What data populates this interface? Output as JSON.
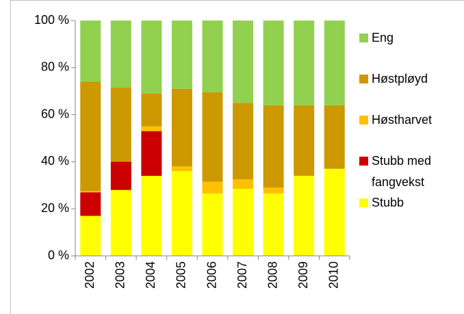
{
  "chart_data": {
    "type": "stacked_bar_percent",
    "categories": [
      "2002",
      "2003",
      "2004",
      "2005",
      "2006",
      "2007",
      "2008",
      "2009",
      "2010"
    ],
    "series": [
      {
        "name": "Stubb",
        "color": "#ffff00",
        "values": [
          17,
          28,
          34,
          36,
          26.5,
          28.5,
          26.5,
          34,
          37
        ]
      },
      {
        "name": "Stubb med fangvekst",
        "color": "#cc0000",
        "values": [
          10,
          12,
          19,
          0,
          0,
          0,
          0,
          0,
          0
        ]
      },
      {
        "name": "Høstharvet",
        "color": "#ffc000",
        "values": [
          0.5,
          0,
          2,
          2,
          5,
          4,
          2.5,
          0,
          0
        ]
      },
      {
        "name": "Høstpløyd",
        "color": "#cc9900",
        "values": [
          46.5,
          31.5,
          14,
          33,
          38,
          32.5,
          35,
          30,
          27
        ]
      },
      {
        "name": "Eng",
        "color": "#92d050",
        "values": [
          26,
          28.5,
          31,
          29,
          30.5,
          35,
          36,
          36,
          36
        ]
      }
    ],
    "ylim": [
      0,
      100
    ],
    "yticks": [
      {
        "value": 0,
        "label": "0 %"
      },
      {
        "value": 20,
        "label": "20 %"
      },
      {
        "value": 40,
        "label": "40 %"
      },
      {
        "value": 60,
        "label": "60 %"
      },
      {
        "value": 80,
        "label": "80 %"
      },
      {
        "value": 100,
        "label": "100 %"
      }
    ],
    "legend": "right"
  }
}
